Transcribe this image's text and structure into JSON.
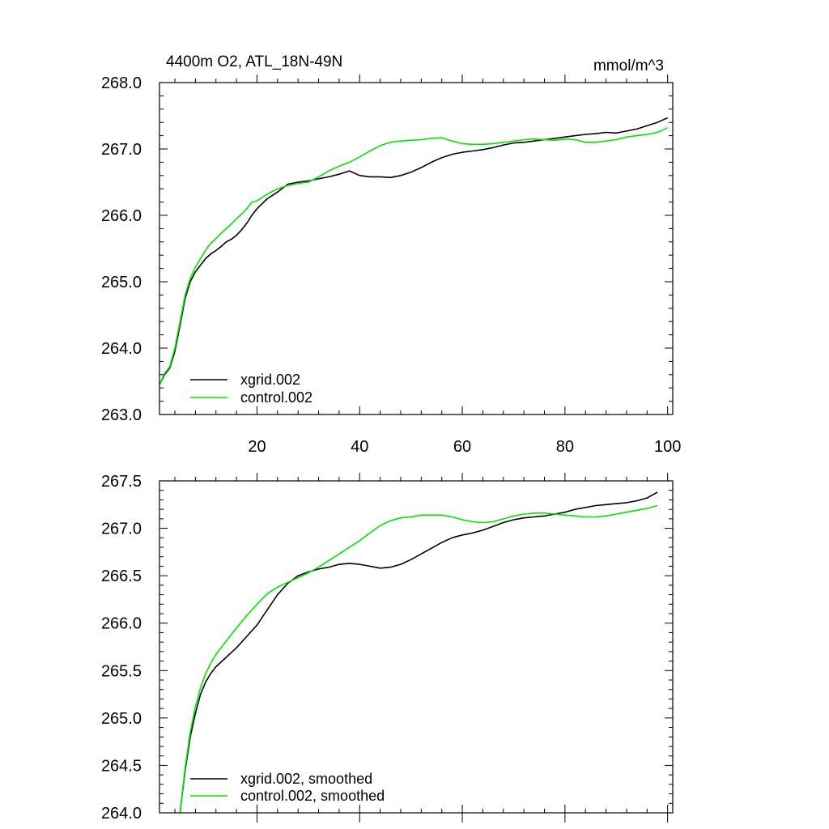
{
  "colors": {
    "xgrid": "#000000",
    "control": "#00e600",
    "frame": "#000000",
    "background": "#ffffff"
  },
  "chart_data": [
    {
      "type": "line",
      "title": "4400m O2, ATL_18N-49N",
      "units": "mmol/m^3",
      "xlim": [
        1,
        101
      ],
      "ylim": [
        263.0,
        268.0
      ],
      "xticks": [
        20,
        40,
        60,
        80,
        100
      ],
      "xtick_labels": [
        "20",
        "40",
        "60",
        "80",
        "100"
      ],
      "yticks": [
        263.0,
        264.0,
        265.0,
        266.0,
        267.0,
        268.0
      ],
      "ytick_labels": [
        "263.0",
        "264.0",
        "265.0",
        "266.0",
        "267.0",
        "268.0"
      ],
      "grid": false,
      "legend_position": "bottom-left",
      "series": [
        {
          "name": "xgrid.002",
          "color": "#000000",
          "x": [
            1,
            2,
            3,
            4,
            5,
            6,
            7,
            8,
            9,
            10,
            11,
            12,
            13,
            14,
            15,
            16,
            17,
            18,
            19,
            20,
            22,
            24,
            26,
            28,
            30,
            32,
            34,
            36,
            38,
            40,
            42,
            44,
            46,
            48,
            50,
            52,
            54,
            56,
            58,
            60,
            62,
            64,
            66,
            68,
            70,
            72,
            74,
            76,
            78,
            80,
            82,
            84,
            86,
            88,
            90,
            92,
            94,
            96,
            98,
            100
          ],
          "y": [
            263.45,
            263.6,
            263.7,
            263.95,
            264.35,
            264.75,
            265.0,
            265.15,
            265.25,
            265.35,
            265.42,
            265.47,
            265.53,
            265.6,
            265.64,
            265.7,
            265.78,
            265.88,
            266.0,
            266.1,
            266.25,
            266.35,
            266.47,
            266.5,
            266.52,
            266.55,
            266.58,
            266.62,
            266.67,
            266.6,
            266.58,
            266.58,
            266.57,
            266.6,
            266.65,
            266.72,
            266.8,
            266.87,
            266.92,
            266.95,
            266.97,
            266.99,
            267.02,
            267.06,
            267.09,
            267.1,
            267.12,
            267.14,
            267.16,
            267.18,
            267.2,
            267.22,
            267.23,
            267.25,
            267.24,
            267.27,
            267.3,
            267.35,
            267.4,
            267.47
          ]
        },
        {
          "name": "control.002",
          "color": "#00e600",
          "x": [
            1,
            2,
            3,
            4,
            5,
            6,
            7,
            8,
            9,
            10,
            11,
            12,
            13,
            14,
            15,
            16,
            17,
            18,
            19,
            20,
            22,
            24,
            26,
            28,
            30,
            32,
            34,
            36,
            38,
            40,
            42,
            44,
            46,
            48,
            50,
            52,
            54,
            56,
            58,
            60,
            62,
            64,
            66,
            68,
            70,
            72,
            74,
            76,
            78,
            80,
            82,
            84,
            86,
            88,
            90,
            92,
            94,
            96,
            98,
            100
          ],
          "y": [
            263.45,
            263.62,
            263.72,
            264.0,
            264.4,
            264.8,
            265.05,
            265.22,
            265.35,
            265.48,
            265.58,
            265.65,
            265.73,
            265.8,
            265.87,
            265.95,
            266.02,
            266.1,
            266.2,
            266.22,
            266.32,
            266.4,
            266.45,
            266.48,
            266.5,
            266.58,
            266.67,
            266.74,
            266.8,
            266.88,
            266.97,
            267.05,
            267.1,
            267.12,
            267.13,
            267.14,
            267.16,
            267.17,
            267.12,
            267.08,
            267.07,
            267.07,
            267.08,
            267.1,
            267.12,
            267.14,
            267.15,
            267.14,
            267.13,
            267.15,
            267.14,
            267.1,
            267.1,
            267.12,
            267.14,
            267.18,
            267.2,
            267.22,
            267.25,
            267.32
          ]
        }
      ]
    },
    {
      "type": "line",
      "xlim": [
        1,
        101
      ],
      "ylim": [
        264.0,
        267.5
      ],
      "xticks": [
        20,
        40,
        60,
        80,
        100
      ],
      "yticks": [
        264.0,
        264.5,
        265.0,
        265.5,
        266.0,
        266.5,
        267.0,
        267.5
      ],
      "ytick_labels": [
        "264.0",
        "264.5",
        "265.0",
        "265.5",
        "266.0",
        "266.5",
        "267.0",
        "267.5"
      ],
      "grid": false,
      "legend_position": "bottom-left",
      "series": [
        {
          "name": "xgrid.002, smoothed",
          "color": "#000000",
          "x": [
            5,
            6,
            7,
            8,
            9,
            10,
            11,
            12,
            14,
            16,
            18,
            20,
            22,
            24,
            26,
            28,
            30,
            32,
            34,
            36,
            38,
            40,
            42,
            44,
            46,
            48,
            50,
            52,
            54,
            56,
            58,
            60,
            62,
            64,
            66,
            68,
            70,
            72,
            74,
            76,
            78,
            80,
            82,
            84,
            86,
            88,
            90,
            92,
            94,
            96,
            98
          ],
          "y": [
            264.0,
            264.45,
            264.8,
            265.05,
            265.25,
            265.38,
            265.47,
            265.54,
            265.64,
            265.74,
            265.86,
            265.98,
            266.14,
            266.3,
            266.42,
            266.5,
            266.54,
            266.57,
            266.59,
            266.62,
            266.63,
            266.62,
            266.6,
            266.58,
            266.59,
            266.62,
            266.67,
            266.73,
            266.79,
            266.85,
            266.9,
            266.93,
            266.95,
            266.98,
            267.02,
            267.06,
            267.09,
            267.11,
            267.12,
            267.13,
            267.15,
            267.17,
            267.2,
            267.22,
            267.24,
            267.25,
            267.26,
            267.27,
            267.29,
            267.32,
            267.38
          ]
        },
        {
          "name": "control.002, smoothed",
          "color": "#00e600",
          "x": [
            5,
            6,
            7,
            8,
            9,
            10,
            11,
            12,
            14,
            16,
            18,
            20,
            22,
            24,
            26,
            28,
            30,
            32,
            34,
            36,
            38,
            40,
            42,
            44,
            46,
            48,
            50,
            52,
            54,
            56,
            58,
            60,
            62,
            64,
            66,
            68,
            70,
            72,
            74,
            76,
            78,
            80,
            82,
            84,
            86,
            88,
            90,
            92,
            94,
            96,
            98
          ],
          "y": [
            264.0,
            264.48,
            264.85,
            265.12,
            265.32,
            265.47,
            265.58,
            265.67,
            265.81,
            265.95,
            266.08,
            266.2,
            266.31,
            266.38,
            266.43,
            266.48,
            266.53,
            266.59,
            266.66,
            266.73,
            266.8,
            266.87,
            266.95,
            267.03,
            267.08,
            267.11,
            267.12,
            267.14,
            267.14,
            267.14,
            267.12,
            267.09,
            267.07,
            267.06,
            267.07,
            267.1,
            267.13,
            267.15,
            267.16,
            267.16,
            267.15,
            267.14,
            267.13,
            267.12,
            267.12,
            267.13,
            267.15,
            267.17,
            267.19,
            267.21,
            267.24
          ]
        }
      ]
    }
  ]
}
